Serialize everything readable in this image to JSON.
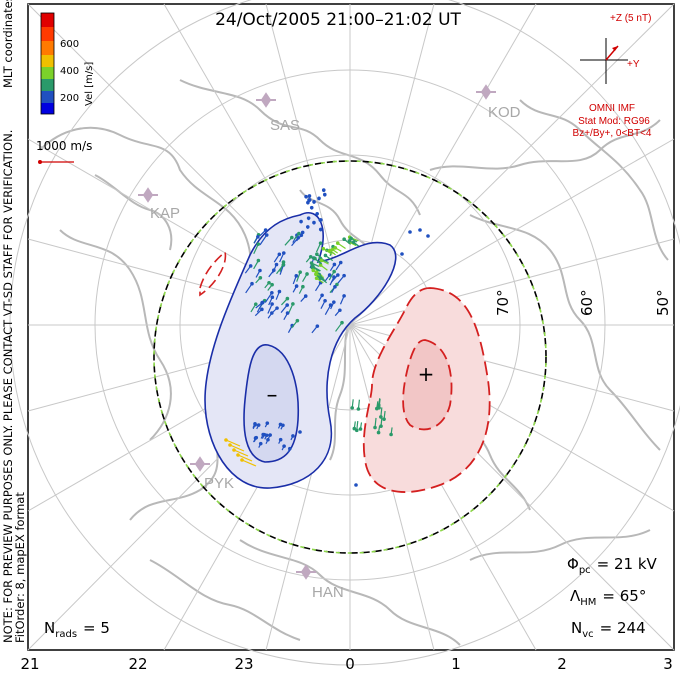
{
  "title": "24/Oct/2005 21:00–21:02 UT",
  "side_note_1": "NOTE: FOR PREVIEW PURPOSES ONLY. PLEASE CONTACT VT-SD STAFF FOR VERIFICATION.",
  "side_note_2": "FitOrder: 8, mapEX format",
  "mlt_label": "MLT coordinates",
  "colorbar": {
    "label": "Vel [m/s]",
    "ticks": [
      "600",
      "400",
      "200"
    ],
    "colors": [
      "#e00000",
      "#ff7a00",
      "#f0c000",
      "#7bd12a",
      "#2a9a6a",
      "#2050c0",
      "#0000e0"
    ]
  },
  "scale_vector": "1000 m/s",
  "imf": {
    "z_label": "+Z (5 nT)",
    "y_label": "+Y",
    "source": "OMNI IMF",
    "model": "Stat Mod: RG96",
    "condition": "Bz+/By+, 0<BT<4"
  },
  "stations": [
    "SAS",
    "KOD",
    "KAP",
    "PYK",
    "HAN"
  ],
  "latitude_labels": [
    "70°",
    "60°",
    "50°"
  ],
  "cell_signs": {
    "negative": "–",
    "positive": "+"
  },
  "stats": {
    "phi_pc": "Φ",
    "phi_pc_sub": "pc",
    "phi_pc_value": "= 21 kV",
    "lambda_hm": "Λ",
    "lambda_hm_sub": "HM",
    "lambda_hm_value": "= 65°",
    "nvc": "N",
    "nvc_sub": "vc",
    "nvc_value": "= 244",
    "nrads": "N",
    "nrads_sub": "rads",
    "nrads_value": "= 5"
  },
  "mlt_axis": [
    "21",
    "22",
    "23",
    "0",
    "1",
    "2",
    "3"
  ],
  "colors": {
    "negative_cell": "#1a2ea8",
    "positive_cell": "#d42020",
    "negative_fill": "#e4e6f6",
    "positive_fill": "#f8dcdc",
    "coastline": "#b8b8b8",
    "grid": "#c8c8c8",
    "station": "#c0a8c0"
  }
}
